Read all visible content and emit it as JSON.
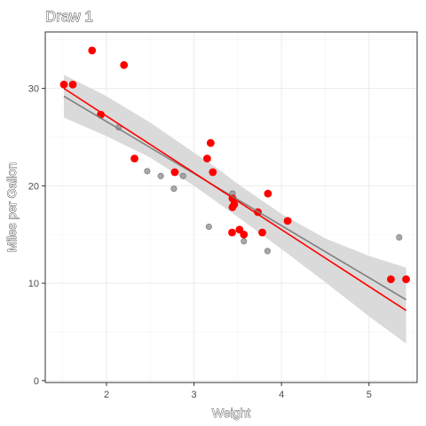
{
  "chart_data": {
    "type": "scatter",
    "title": "Draw 1",
    "xlabel": "Weight",
    "ylabel": "Miles per Gallon",
    "xlim": [
      1.3,
      5.55
    ],
    "ylim": [
      -0.2,
      35.8
    ],
    "xticks": [
      2,
      3,
      4,
      5
    ],
    "yticks": [
      0,
      10,
      20,
      30
    ],
    "grid": true,
    "legend": "none",
    "colors": {
      "observed": "#999999",
      "observed_edge": "#6e6e6e",
      "observed_fit": "#7f7f7f",
      "confidence_band": "#d3d3d3",
      "draw": "#ff0000",
      "draw_fit": "#ff0000",
      "panel_border": "#333333"
    },
    "series": [
      {
        "role": "observed",
        "points": [
          [
            1.513,
            30.4
          ],
          [
            1.615,
            30.4
          ],
          [
            1.835,
            33.9
          ],
          [
            1.935,
            27.3
          ],
          [
            2.14,
            26.0
          ],
          [
            2.2,
            32.4
          ],
          [
            2.32,
            22.8
          ],
          [
            2.465,
            21.5
          ],
          [
            2.62,
            21.0
          ],
          [
            2.77,
            19.7
          ],
          [
            2.78,
            21.4
          ],
          [
            2.875,
            21.0
          ],
          [
            3.15,
            22.8
          ],
          [
            3.17,
            15.8
          ],
          [
            3.19,
            24.4
          ],
          [
            3.215,
            21.4
          ],
          [
            3.435,
            15.2
          ],
          [
            3.44,
            18.7
          ],
          [
            3.44,
            19.2
          ],
          [
            3.44,
            17.8
          ],
          [
            3.46,
            18.1
          ],
          [
            3.52,
            15.5
          ],
          [
            3.57,
            14.3
          ],
          [
            3.57,
            15.0
          ],
          [
            3.73,
            17.3
          ],
          [
            3.78,
            15.2
          ],
          [
            3.84,
            13.3
          ],
          [
            3.845,
            19.2
          ],
          [
            4.07,
            16.4
          ],
          [
            5.25,
            10.4
          ],
          [
            5.345,
            14.7
          ],
          [
            5.424,
            10.4
          ]
        ]
      },
      {
        "role": "draw",
        "points": [
          [
            1.513,
            30.4
          ],
          [
            1.615,
            30.4
          ],
          [
            1.835,
            33.9
          ],
          [
            1.935,
            27.3
          ],
          [
            2.2,
            32.4
          ],
          [
            2.32,
            22.8
          ],
          [
            2.78,
            21.4
          ],
          [
            3.15,
            22.8
          ],
          [
            3.19,
            24.4
          ],
          [
            3.215,
            21.4
          ],
          [
            3.435,
            15.2
          ],
          [
            3.44,
            18.7
          ],
          [
            3.44,
            17.8
          ],
          [
            3.46,
            18.1
          ],
          [
            3.52,
            15.5
          ],
          [
            3.57,
            15.0
          ],
          [
            3.73,
            17.3
          ],
          [
            3.78,
            15.2
          ],
          [
            3.845,
            19.2
          ],
          [
            4.07,
            16.4
          ],
          [
            5.25,
            10.4
          ],
          [
            5.424,
            10.4
          ]
        ]
      }
    ],
    "observed_fit": {
      "x": [
        1.513,
        5.424
      ],
      "y": [
        29.2,
        8.3
      ]
    },
    "draw_fit": {
      "x": [
        1.513,
        5.424
      ],
      "y": [
        30.0,
        7.2
      ]
    },
    "confidence_band": {
      "x": [
        1.513,
        2.0,
        2.5,
        3.0,
        3.25,
        3.5,
        4.0,
        4.5,
        5.0,
        5.424
      ],
      "lower": [
        27.0,
        25.1,
        22.9,
        20.0,
        18.4,
        16.8,
        13.5,
        10.1,
        6.6,
        3.8
      ],
      "upper": [
        31.4,
        29.2,
        26.5,
        23.4,
        21.9,
        20.2,
        17.1,
        14.6,
        12.8,
        11.6
      ]
    }
  }
}
